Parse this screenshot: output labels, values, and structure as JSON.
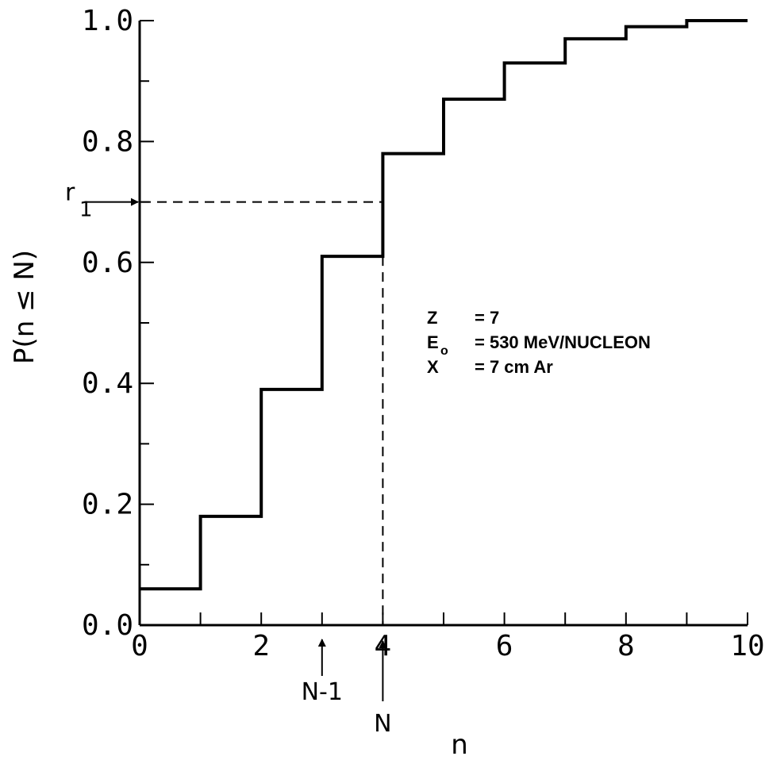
{
  "chart_data": {
    "type": "line",
    "style": "step",
    "title": "",
    "xlabel": "n",
    "ylabel": "P(n ≤ N)",
    "xlim": [
      0,
      10
    ],
    "ylim": [
      0,
      1.0
    ],
    "x_ticks": [
      "0",
      "2",
      "4",
      "6",
      "8",
      "10"
    ],
    "y_ticks": [
      "0.0",
      "0.2",
      "0.4",
      "0.6",
      "0.8",
      "1.0"
    ],
    "grid": false,
    "series": [
      {
        "x": [
          0,
          1,
          2,
          3,
          4,
          5,
          6,
          7,
          8,
          9,
          10
        ],
        "values": [
          0.06,
          0.18,
          0.39,
          0.61,
          0.78,
          0.87,
          0.93,
          0.97,
          0.99,
          1.0,
          1.0
        ]
      }
    ],
    "annotations": {
      "r1_label": "r",
      "r1_sub": "1",
      "r1_value": 0.7,
      "n_minus_1_label": "N-1",
      "n_minus_1_x": 3,
      "n_label": "N",
      "n_x": 4
    },
    "params": {
      "z_line": {
        "symbol": "Z",
        "value": "= 7"
      },
      "e_line": {
        "symbol": "E",
        "sub": "o",
        "value": "= 530 MeV/NUCLEON"
      },
      "x_line": {
        "symbol": "X",
        "value": "= 7 cm Ar"
      }
    }
  }
}
